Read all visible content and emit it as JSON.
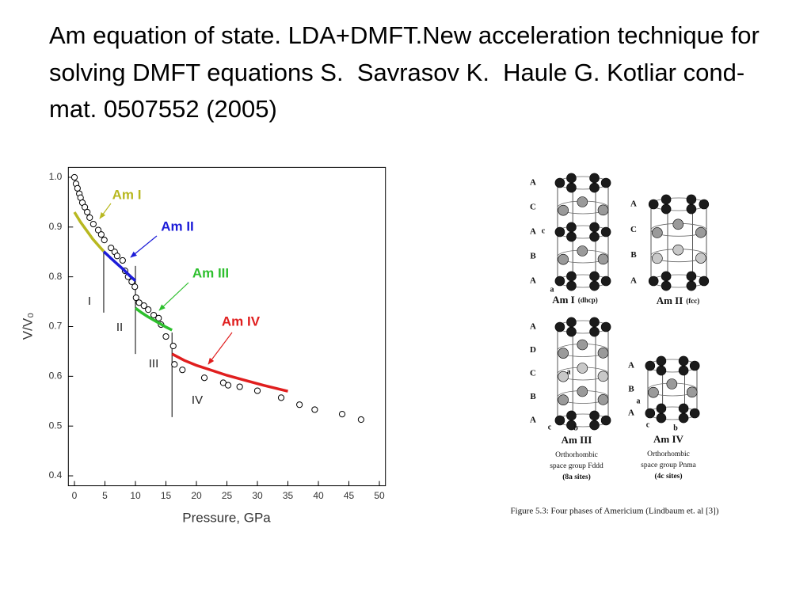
{
  "title": "Am equation of state. LDA+DMFT.New acceleration technique for solving DMFT equations S.  Savrasov K.  Haule G. Kotliar cond-mat. 0507552 (2005)",
  "chart_data": {
    "type": "line",
    "xlabel": "Pressure, GPa",
    "ylabel": "V/V₀",
    "xlim": [
      -1,
      51
    ],
    "ylim": [
      0.38,
      1.02
    ],
    "xticks": [
      0,
      5,
      10,
      15,
      20,
      25,
      30,
      35,
      40,
      45,
      50
    ],
    "yticks": [
      {
        "value": 1,
        "label": "1.0"
      },
      0.9,
      0.8,
      0.7,
      0.6,
      0.5,
      0.4
    ],
    "series": [
      {
        "style": "markers",
        "color": "#000000",
        "x": [
          0,
          0.26,
          0.5,
          0.8,
          1.0,
          1.3,
          1.7,
          2.1,
          2.5,
          3.1,
          3.9,
          4.4,
          4.9,
          6.0,
          6.6,
          7.0,
          7.9,
          8.3,
          8.8,
          9.4,
          9.9,
          10.1,
          10.6,
          11.4,
          12.1,
          13.0,
          13.8,
          14.2,
          15.0,
          16.2,
          16.4,
          17.7,
          21.3,
          24.4,
          25.2,
          27.1,
          30.0,
          33.9,
          36.9,
          39.4,
          43.9,
          47.0
        ],
        "values": [
          1.0,
          0.987,
          0.978,
          0.967,
          0.959,
          0.949,
          0.94,
          0.93,
          0.919,
          0.906,
          0.894,
          0.885,
          0.874,
          0.858,
          0.85,
          0.842,
          0.833,
          0.812,
          0.8,
          0.79,
          0.78,
          0.758,
          0.748,
          0.742,
          0.734,
          0.723,
          0.717,
          0.704,
          0.68,
          0.661,
          0.624,
          0.613,
          0.597,
          0.587,
          0.582,
          0.579,
          0.571,
          0.557,
          0.543,
          0.533,
          0.524,
          0.513
        ]
      },
      {
        "name": "Am I",
        "style": "line",
        "color": "#b8b820",
        "x": [
          0,
          1,
          2,
          3,
          4,
          4.8
        ],
        "values": [
          0.93,
          0.91,
          0.893,
          0.876,
          0.862,
          0.851
        ]
      },
      {
        "name": "Am II",
        "style": "line",
        "color": "#1c1cd8",
        "x": [
          4.8,
          6,
          7,
          8,
          9,
          10
        ],
        "values": [
          0.851,
          0.837,
          0.826,
          0.815,
          0.803,
          0.792
        ]
      },
      {
        "name": "Am III",
        "style": "line",
        "color": "#2dbf2d",
        "x": [
          10,
          11,
          12,
          13,
          14,
          15,
          16
        ],
        "values": [
          0.737,
          0.728,
          0.72,
          0.713,
          0.706,
          0.699,
          0.693
        ]
      },
      {
        "name": "Am IV",
        "style": "line",
        "color": "#e01e1e",
        "x": [
          16,
          18,
          20,
          22,
          25,
          28,
          31,
          35
        ],
        "values": [
          0.645,
          0.632,
          0.622,
          0.614,
          0.602,
          0.592,
          0.582,
          0.57
        ]
      }
    ],
    "phase_boundaries": [
      {
        "x": 4.8,
        "y": [
          0.728,
          0.85
        ]
      },
      {
        "x": 10,
        "y": [
          0.645,
          0.822
        ]
      },
      {
        "x": 16,
        "y": [
          0.518,
          0.688
        ]
      }
    ],
    "phase_labels": [
      "I",
      "II",
      "III",
      "IV"
    ]
  },
  "figure": {
    "panels": [
      {
        "name": "Am I",
        "sub": "(dhcp)",
        "layers": [
          "A",
          "C",
          "A",
          "B",
          "A"
        ],
        "axes": [
          "c",
          "a"
        ],
        "notes": []
      },
      {
        "name": "Am II",
        "sub": "(fcc)",
        "layers": [
          "A",
          "C",
          "B",
          "A"
        ],
        "axes": [],
        "notes": []
      },
      {
        "name": "Am III",
        "sub": "",
        "layers": [
          "A",
          "D",
          "C",
          "B",
          "A"
        ],
        "axes": [
          "a",
          "c",
          "b"
        ],
        "notes": [
          "Orthorhombic",
          "space group Fddd",
          "(8a sites)"
        ]
      },
      {
        "name": "Am IV",
        "sub": "",
        "layers": [
          "A",
          "B",
          "A"
        ],
        "axes": [
          "a",
          "c",
          "b"
        ],
        "notes": [
          "Orthorhombic",
          "space group Pnma",
          "(4c sites)"
        ]
      }
    ],
    "caption": "Figure 5.3: Four phases of Americium (Lindbaum et. al [3])"
  }
}
